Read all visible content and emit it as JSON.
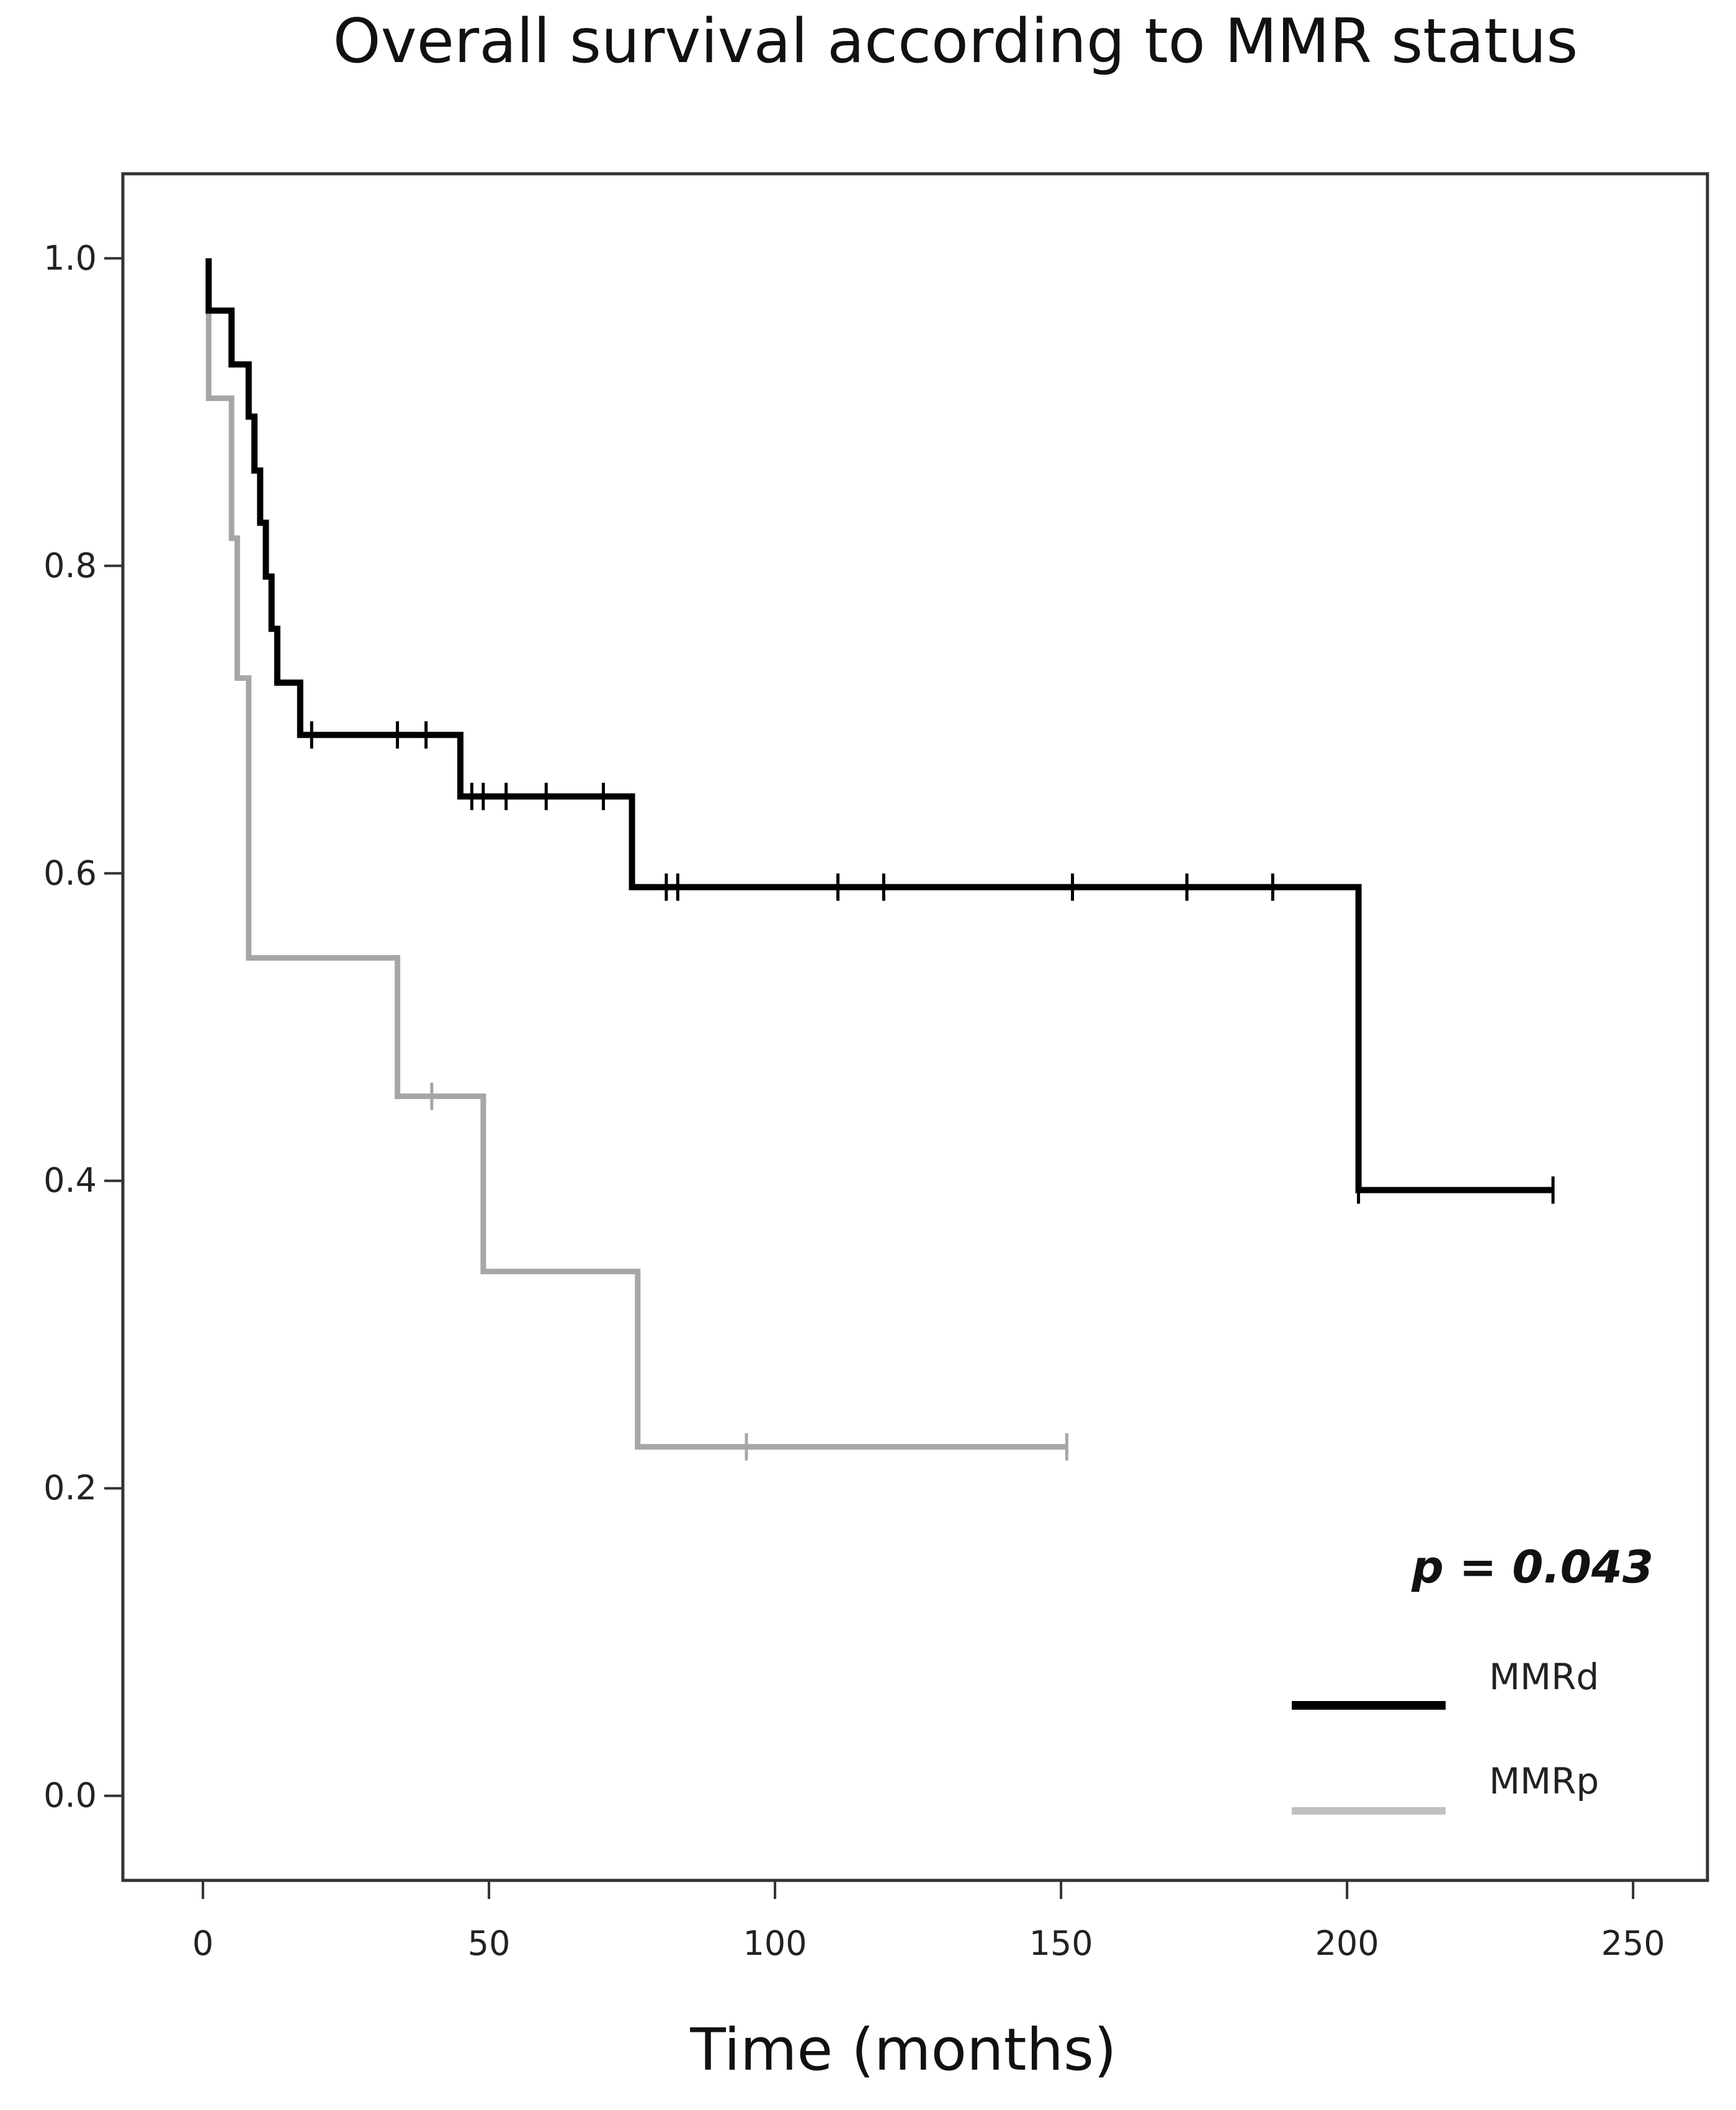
{
  "chart_data": {
    "type": "line",
    "subtype": "kaplan-meier",
    "title": "Overall survival according to MMR status",
    "xlabel": "Time (months)",
    "ylabel": "",
    "xlim": [
      -14,
      263
    ],
    "ylim": [
      -0.055,
      1.055
    ],
    "xticks": [
      0,
      50,
      100,
      150,
      200,
      250
    ],
    "xtick_labels": [
      "0",
      "50",
      "100",
      "150",
      "200",
      "250"
    ],
    "yticks": [
      0.0,
      0.2,
      0.4,
      0.6,
      0.8,
      1.0
    ],
    "ytick_labels": [
      "0.0",
      "0.2",
      "0.4",
      "0.6",
      "0.8",
      "1.0"
    ],
    "grid": false,
    "annotation": "p = 0.043",
    "legend_position": "bottom-right",
    "series": [
      {
        "name": "MMRd",
        "color": "#000000",
        "steps": [
          [
            1,
            1.0
          ],
          [
            1,
            0.966
          ],
          [
            5,
            0.966
          ],
          [
            5,
            0.931
          ],
          [
            8,
            0.931
          ],
          [
            8,
            0.897
          ],
          [
            9,
            0.897
          ],
          [
            9,
            0.862
          ],
          [
            10,
            0.862
          ],
          [
            10,
            0.828
          ],
          [
            11,
            0.828
          ],
          [
            11,
            0.793
          ],
          [
            12,
            0.793
          ],
          [
            12,
            0.759
          ],
          [
            13,
            0.759
          ],
          [
            13,
            0.724
          ],
          [
            17,
            0.724
          ],
          [
            17,
            0.69
          ],
          [
            45,
            0.69
          ],
          [
            45,
            0.65
          ],
          [
            75,
            0.65
          ],
          [
            75,
            0.591
          ],
          [
            202,
            0.591
          ],
          [
            202,
            0.394
          ],
          [
            236,
            0.394
          ]
        ],
        "censored": [
          19,
          34,
          39,
          47,
          49,
          53,
          60,
          70,
          81,
          83,
          111,
          119,
          152,
          172,
          187,
          202,
          236
        ]
      },
      {
        "name": "MMRp",
        "color": "#a6a6a6",
        "steps": [
          [
            1,
            1.0
          ],
          [
            1,
            0.909
          ],
          [
            5,
            0.909
          ],
          [
            5,
            0.818
          ],
          [
            6,
            0.818
          ],
          [
            6,
            0.727
          ],
          [
            8,
            0.727
          ],
          [
            8,
            0.545
          ],
          [
            34,
            0.545
          ],
          [
            34,
            0.455
          ],
          [
            49,
            0.455
          ],
          [
            49,
            0.341
          ],
          [
            76,
            0.341
          ],
          [
            76,
            0.227
          ],
          [
            151,
            0.227
          ]
        ],
        "censored": [
          40,
          95,
          151
        ]
      }
    ]
  }
}
